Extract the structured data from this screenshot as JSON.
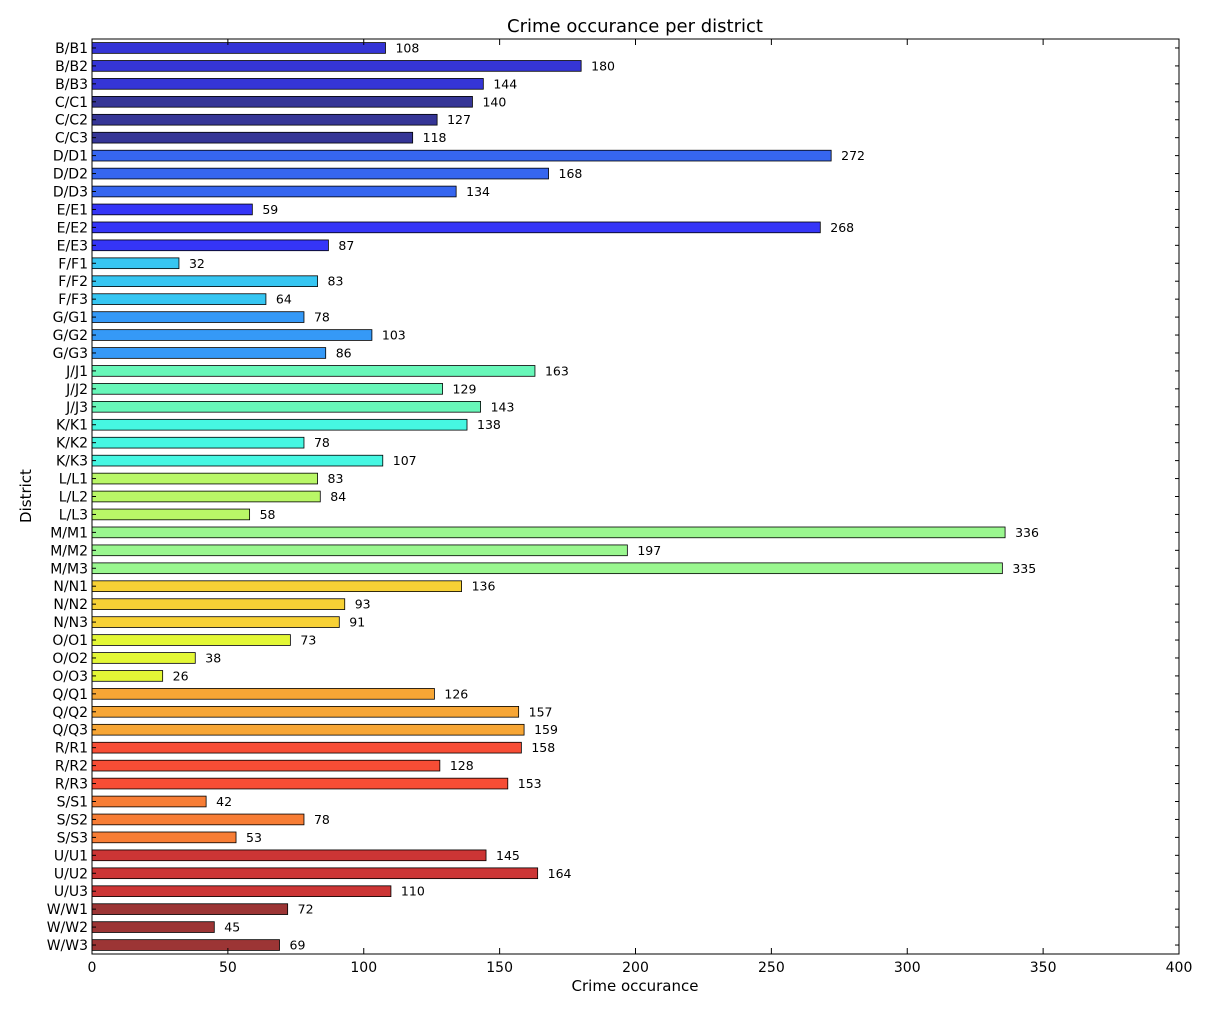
{
  "chart_data": {
    "type": "bar",
    "orientation": "horizontal",
    "title": "Crime occurance per district",
    "xlabel": "Crime occurance",
    "ylabel": "District",
    "xlim": [
      0,
      400
    ],
    "xticks": [
      "0",
      "50",
      "100",
      "150",
      "200",
      "250",
      "300",
      "350",
      "400"
    ],
    "grid": false,
    "categories": [
      "B/B1",
      "B/B2",
      "B/B3",
      "C/C1",
      "C/C2",
      "C/C3",
      "D/D1",
      "D/D2",
      "D/D3",
      "E/E1",
      "E/E2",
      "E/E3",
      "F/F1",
      "F/F2",
      "F/F3",
      "G/G1",
      "G/G2",
      "G/G3",
      "J/J1",
      "J/J2",
      "J/J3",
      "K/K1",
      "K/K2",
      "K/K3",
      "L/L1",
      "L/L2",
      "L/L3",
      "M/M1",
      "M/M2",
      "M/M3",
      "N/N1",
      "N/N2",
      "N/N3",
      "O/O1",
      "O/O2",
      "O/O3",
      "Q/Q1",
      "Q/Q2",
      "Q/Q3",
      "R/R1",
      "R/R2",
      "R/R3",
      "S/S1",
      "S/S2",
      "S/S3",
      "U/U1",
      "U/U2",
      "U/U3",
      "W/W1",
      "W/W2",
      "W/W3"
    ],
    "values": [
      108,
      180,
      144,
      140,
      127,
      118,
      272,
      168,
      134,
      59,
      268,
      87,
      32,
      83,
      64,
      78,
      103,
      86,
      163,
      129,
      143,
      138,
      78,
      107,
      83,
      84,
      58,
      336,
      197,
      335,
      136,
      93,
      91,
      73,
      38,
      26,
      126,
      157,
      159,
      158,
      128,
      153,
      42,
      78,
      53,
      145,
      164,
      110,
      72,
      45,
      69
    ],
    "value_labels": [
      "108",
      "180",
      "144",
      "140",
      "127",
      "118",
      "272",
      "168",
      "134",
      "59",
      "268",
      "87",
      "32",
      "83",
      "64",
      "78",
      "103",
      "86",
      "163",
      "129",
      "143",
      "138",
      "78",
      "107",
      "83",
      "84",
      "58",
      "336",
      "197",
      "335",
      "136",
      "93",
      "91",
      "73",
      "38",
      "26",
      "126",
      "157",
      "159",
      "158",
      "128",
      "153",
      "42",
      "78",
      "53",
      "145",
      "164",
      "110",
      "72",
      "45",
      "69"
    ],
    "group_colors": {
      "B": "#3535d6",
      "C": "#353596",
      "D": "#3666f0",
      "E": "#3535f7",
      "F": "#36c6f2",
      "G": "#3599f7",
      "J": "#68f7b9",
      "K": "#46f7e2",
      "L": "#b9f767",
      "M": "#9af78f",
      "N": "#f7d135",
      "O": "#e3f736",
      "Q": "#f7a635",
      "R": "#f74d35",
      "S": "#f77d35",
      "U": "#cc3535",
      "W": "#9c3535"
    },
    "bar_edge_color": "#000000",
    "axes_edge_color": "#000000",
    "background_color": "#ffffff"
  }
}
